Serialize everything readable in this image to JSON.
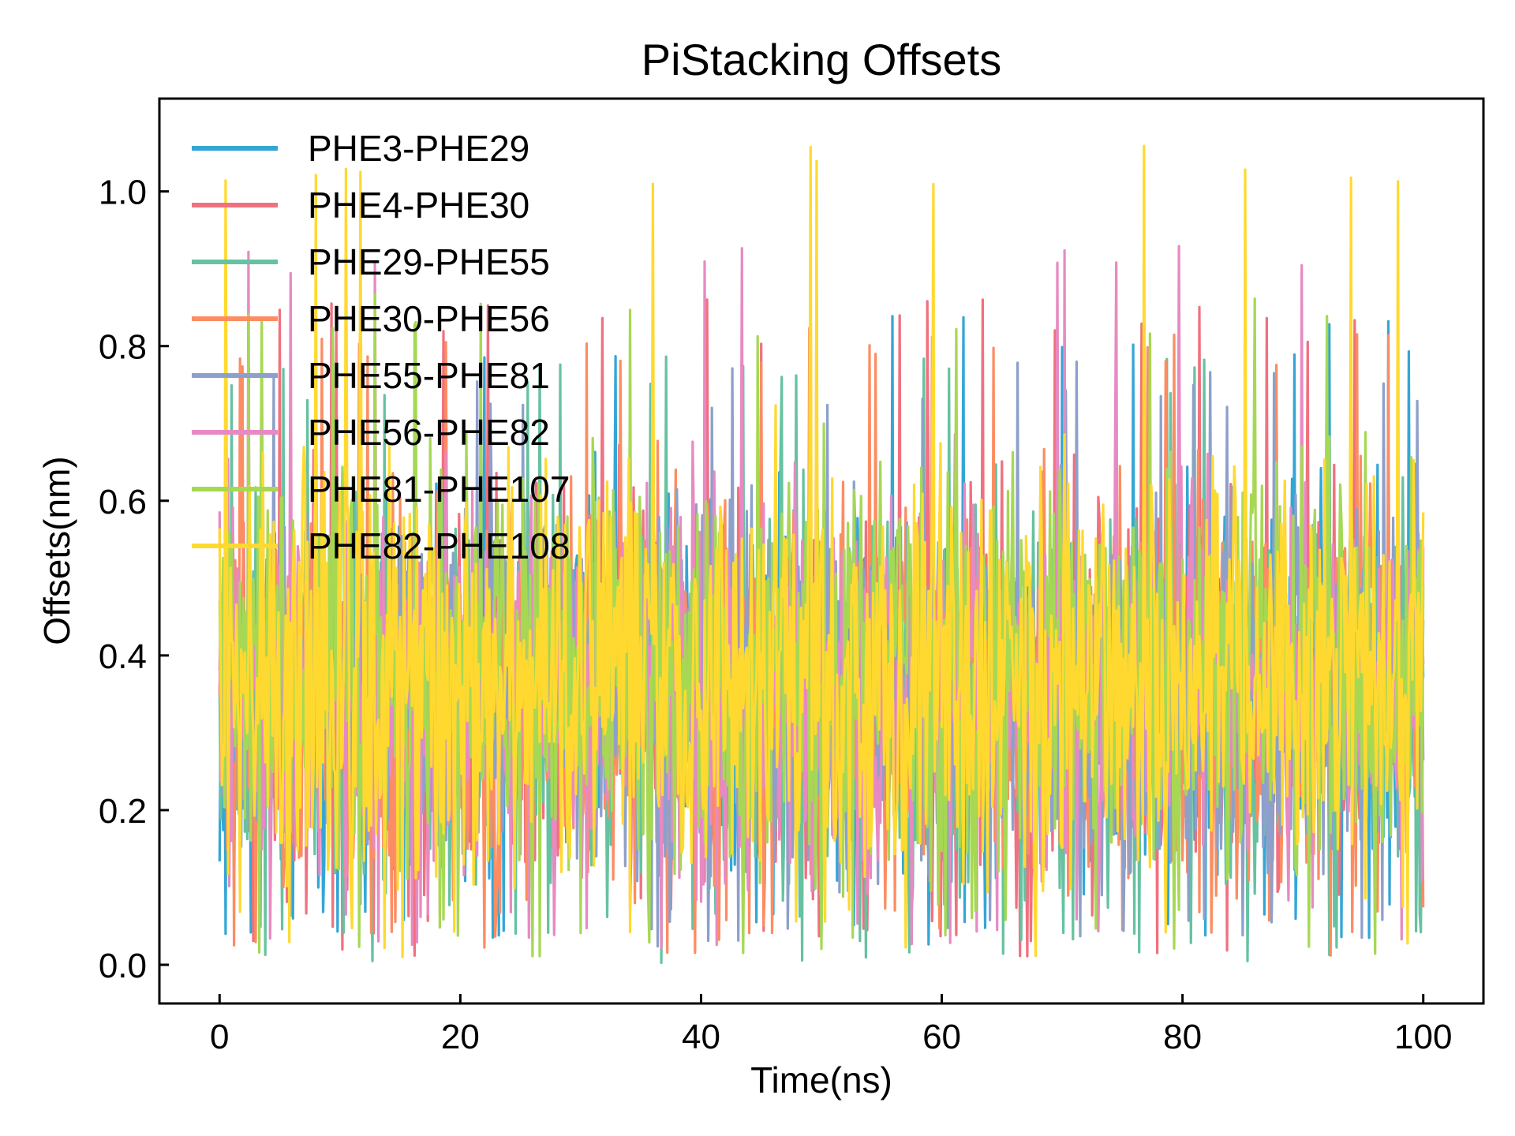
{
  "chart_data": {
    "type": "line",
    "title": "PiStacking Offsets",
    "xlabel": "Time(ns)",
    "ylabel": "Offsets(nm)",
    "xlim": [
      -5,
      105
    ],
    "ylim": [
      -0.05,
      1.12
    ],
    "xticks": [
      0,
      20,
      40,
      60,
      80,
      100
    ],
    "xtick_labels": [
      "0",
      "20",
      "40",
      "60",
      "80",
      "100"
    ],
    "yticks": [
      0.0,
      0.2,
      0.4,
      0.6,
      0.8,
      1.0
    ],
    "ytick_labels": [
      "0.0",
      "0.2",
      "0.4",
      "0.6",
      "0.8",
      "1.0"
    ],
    "grid": false,
    "legend_position": "upper-left",
    "x_range": [
      0,
      100
    ],
    "samples_per_series": 1001,
    "series": [
      {
        "name": "PHE3-PHE29",
        "color": "#34a6d6",
        "min": 0.02,
        "max": 0.84,
        "mean": 0.35
      },
      {
        "name": "PHE4-PHE30",
        "color": "#f0717f",
        "min": 0.01,
        "max": 0.86,
        "mean": 0.35
      },
      {
        "name": "PHE29-PHE55",
        "color": "#66c2a0",
        "min": 0.0,
        "max": 0.79,
        "mean": 0.34
      },
      {
        "name": "PHE30-PHE56",
        "color": "#fc8d62",
        "min": 0.01,
        "max": 0.83,
        "mean": 0.35
      },
      {
        "name": "PHE55-PHE81",
        "color": "#8da0cb",
        "min": 0.02,
        "max": 0.78,
        "mean": 0.35
      },
      {
        "name": "PHE56-PHE82",
        "color": "#e78ac3",
        "min": 0.02,
        "max": 0.93,
        "mean": 0.36
      },
      {
        "name": "PHE81-PHE107",
        "color": "#a6d854",
        "min": 0.01,
        "max": 0.87,
        "mean": 0.38
      },
      {
        "name": "PHE82-PHE108",
        "color": "#ffd92f",
        "min": 0.01,
        "max": 1.06,
        "mean": 0.37
      }
    ]
  }
}
